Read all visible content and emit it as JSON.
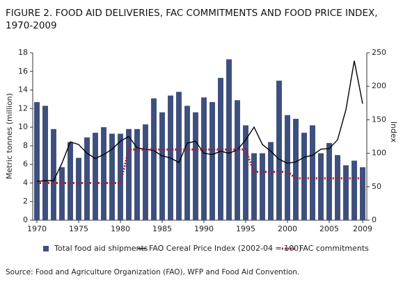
{
  "chart_data": {
    "type": "bar",
    "title": "FIGURE 2. FOOD AID DELIVERIES, FAC COMMITMENTS AND FOOD PRICE INDEX, 1970-2009",
    "source": "Source: Food and Agriculture Organization (FAO), WFP and Food Aid Convention.",
    "ylabel": "Metric tonnes (million)",
    "y2label": "Index",
    "x": [
      1970,
      1971,
      1972,
      1973,
      1974,
      1975,
      1976,
      1977,
      1978,
      1979,
      1980,
      1981,
      1982,
      1983,
      1984,
      1985,
      1986,
      1987,
      1988,
      1989,
      1990,
      1991,
      1992,
      1993,
      1994,
      1995,
      1996,
      1997,
      1998,
      1999,
      2000,
      2001,
      2002,
      2003,
      2004,
      2005,
      2006,
      2007,
      2008,
      2009
    ],
    "xlim": [
      1969.5,
      2009.5
    ],
    "xticks": [
      1970,
      1975,
      1980,
      1985,
      1990,
      1995,
      2000,
      2005,
      2009
    ],
    "ylim": [
      0,
      18
    ],
    "yticks": [
      0,
      2,
      4,
      6,
      8,
      10,
      12,
      14,
      16,
      18
    ],
    "y2lim": [
      0,
      250
    ],
    "y2ticks": [
      0,
      50,
      100,
      150,
      200,
      250
    ],
    "series": [
      {
        "name": "Total food aid shipments",
        "type": "bar",
        "color": "#3d4f7c",
        "values": [
          12.7,
          12.3,
          9.8,
          5.7,
          8.4,
          6.7,
          8.9,
          9.4,
          10.0,
          9.3,
          9.3,
          9.8,
          9.8,
          10.3,
          13.1,
          11.6,
          13.4,
          13.8,
          12.3,
          11.6,
          13.2,
          12.7,
          15.3,
          17.3,
          12.9,
          10.2,
          7.2,
          7.2,
          8.4,
          15.0,
          11.3,
          10.9,
          9.4,
          10.2,
          7.2,
          8.3,
          7.0,
          5.9,
          6.4,
          5.7
        ]
      },
      {
        "name": "FAO Cereal Price Index (2002-04 = 100)",
        "type": "line",
        "axis": "y2",
        "color": "#000000",
        "values": [
          58,
          59,
          59,
          85,
          117,
          113,
          100,
          92,
          98,
          106,
          118,
          125,
          108,
          106,
          104,
          96,
          93,
          86,
          115,
          118,
          100,
          98,
          103,
          100,
          105,
          120,
          139,
          113,
          103,
          91,
          85,
          87,
          94,
          97,
          106,
          107,
          120,
          165,
          238,
          174
        ]
      },
      {
        "name": "FAC commitments",
        "type": "dotted",
        "color": "#a0203a",
        "values": [
          4.0,
          4.0,
          4.0,
          4.0,
          4.0,
          4.0,
          4.0,
          4.0,
          4.0,
          4.0,
          4.0,
          7.6,
          7.6,
          7.6,
          7.6,
          7.6,
          7.6,
          7.6,
          7.6,
          7.6,
          7.6,
          7.6,
          7.6,
          7.6,
          7.6,
          7.6,
          5.2,
          5.2,
          5.2,
          5.2,
          5.2,
          4.5,
          4.5,
          4.5,
          4.5,
          4.5,
          4.5,
          4.5,
          4.5,
          4.5
        ]
      }
    ]
  }
}
